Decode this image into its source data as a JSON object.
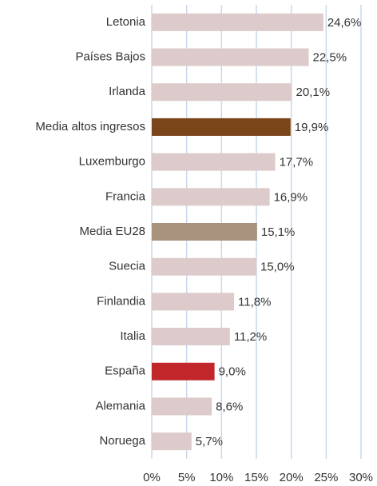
{
  "chart_data": {
    "type": "barh",
    "categories": [
      "Letonia",
      "Países Bajos",
      "Irlanda",
      "Media altos ingresos",
      "Luxemburgo",
      "Francia",
      "Media EU28",
      "Suecia",
      "Finlandia",
      "Italia",
      "España",
      "Alemania",
      "Noruega"
    ],
    "values": [
      24.6,
      22.5,
      20.1,
      19.9,
      17.7,
      16.9,
      15.1,
      15.0,
      11.8,
      11.2,
      9.0,
      8.6,
      5.7
    ],
    "value_labels": [
      "24,6%",
      "22,5%",
      "20,1%",
      "19,9%",
      "17,7%",
      "16,9%",
      "15,1%",
      "15,0%",
      "11,8%",
      "11,2%",
      "9,0%",
      "8,6%",
      "5,7%"
    ],
    "colors": [
      "#dccbca",
      "#dccbca",
      "#dccbca",
      "#7b451a",
      "#dccbca",
      "#dccbca",
      "#a8927e",
      "#dccbca",
      "#dccbca",
      "#dccbca",
      "#c1272a",
      "#dccbca",
      "#dccbca"
    ],
    "xlim": [
      0,
      30
    ],
    "xticks": [
      {
        "value": 0,
        "label": "0%"
      },
      {
        "value": 5,
        "label": "5%"
      },
      {
        "value": 10,
        "label": "10%"
      },
      {
        "value": 15,
        "label": "15%"
      },
      {
        "value": 20,
        "label": "20%"
      },
      {
        "value": 25,
        "label": "25%"
      },
      {
        "value": 30,
        "label": "30%"
      }
    ],
    "grid": true
  }
}
